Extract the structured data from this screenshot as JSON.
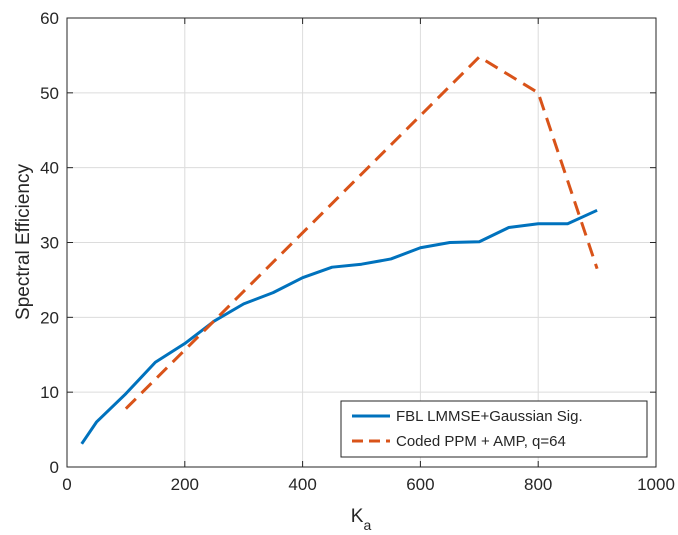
{
  "chart_data": {
    "type": "line",
    "title": "",
    "xlabel": "K",
    "xlabel_subscript": "a",
    "ylabel": "Spectral Efficiency",
    "xlim": [
      0,
      1000
    ],
    "ylim": [
      0,
      60
    ],
    "xticks": [
      0,
      200,
      400,
      600,
      800,
      1000
    ],
    "yticks": [
      0,
      10,
      20,
      30,
      40,
      50,
      60
    ],
    "xtick_labels": [
      "0",
      "200",
      "400",
      "600",
      "800",
      "1000"
    ],
    "ytick_labels": [
      "0",
      "10",
      "20",
      "30",
      "40",
      "50",
      "60"
    ],
    "grid": true,
    "legend_position": "bottom-right",
    "series": [
      {
        "name": "FBL LMMSE+Gaussian Sig.",
        "color": "#0072BD",
        "style": "solid",
        "x": [
          25,
          50,
          100,
          150,
          200,
          250,
          300,
          350,
          400,
          450,
          500,
          550,
          600,
          650,
          700,
          750,
          800,
          850,
          900
        ],
        "y": [
          3.1,
          6.0,
          9.8,
          14.0,
          16.5,
          19.5,
          21.8,
          23.3,
          25.3,
          26.7,
          27.1,
          27.8,
          29.3,
          30.0,
          30.1,
          32.0,
          32.5,
          32.5,
          34.3
        ]
      },
      {
        "name": "Coded PPM + AMP, q=64",
        "color": "#D95319",
        "style": "dashed",
        "x": [
          100,
          700,
          800,
          900
        ],
        "y": [
          7.8,
          54.8,
          50.0,
          26.5
        ]
      }
    ]
  }
}
